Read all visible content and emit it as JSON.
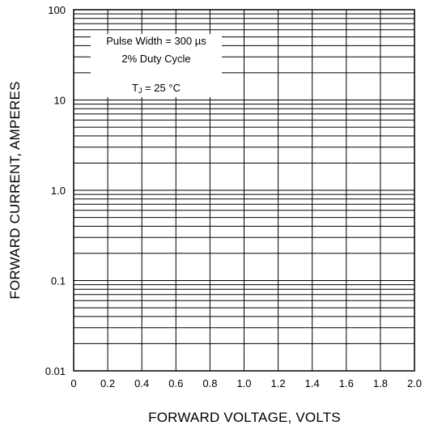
{
  "chart_data": {
    "type": "line",
    "xlabel": "FORWARD VOLTAGE, VOLTS",
    "ylabel": "FORWARD CURRENT, AMPERES",
    "x_scale": "linear",
    "y_scale": "log",
    "xlim": [
      0,
      2.0
    ],
    "ylim": [
      0.01,
      100
    ],
    "x_ticks": [
      "0",
      "0.2",
      "0.4",
      "0.6",
      "0.8",
      "1.0",
      "1.2",
      "1.4",
      "1.6",
      "1.8",
      "2.0"
    ],
    "y_ticks": [
      "0.01",
      "0.1",
      "1.0",
      "10",
      "100"
    ],
    "grid": true,
    "series": [],
    "annotation": {
      "line1": "Pulse Width = 300 µs",
      "line2": "2% Duty Cycle",
      "tj_symbol": "T",
      "tj_subscript": "J",
      "tj_value": " = 25 °C"
    }
  }
}
